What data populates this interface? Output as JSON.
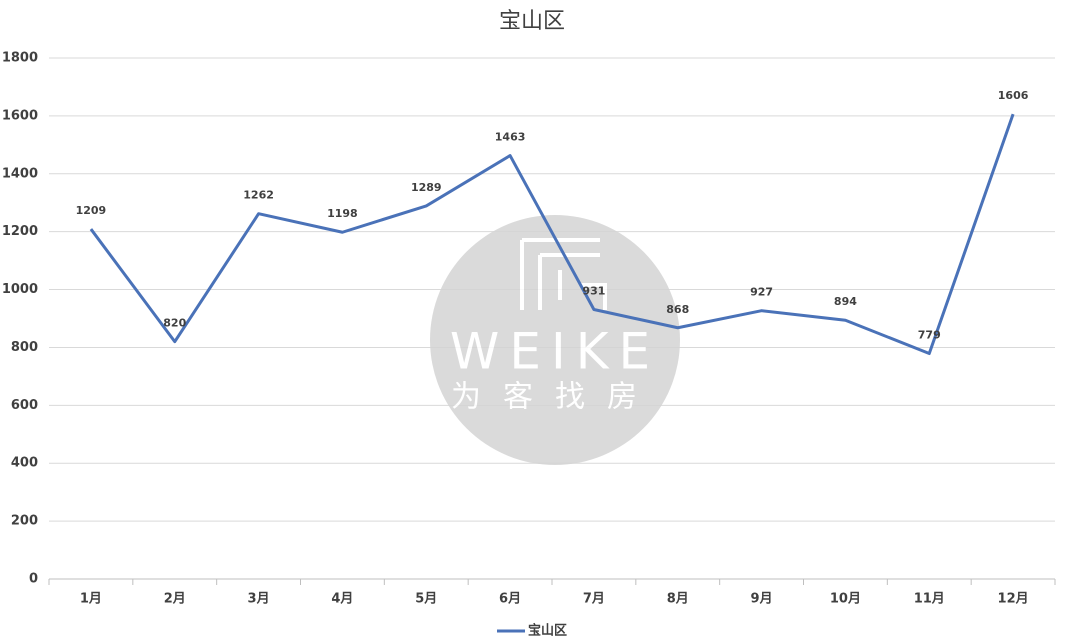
{
  "chart_data": {
    "type": "line",
    "title": "宝山区",
    "categories": [
      "1月",
      "2月",
      "3月",
      "4月",
      "5月",
      "6月",
      "7月",
      "8月",
      "9月",
      "10月",
      "11月",
      "12月"
    ],
    "series": [
      {
        "name": "宝山区",
        "color": "#4a72b8",
        "values": [
          1209,
          820,
          1262,
          1198,
          1289,
          1463,
          931,
          868,
          927,
          894,
          779,
          1606
        ]
      }
    ],
    "ylim": [
      0,
      1800
    ],
    "yticks": [
      0,
      200,
      400,
      600,
      800,
      1000,
      1200,
      1400,
      1600,
      1800
    ],
    "grid": true,
    "legend": "bottom",
    "watermark": {
      "text": "WEIKE",
      "subtext": "为客找房"
    }
  }
}
